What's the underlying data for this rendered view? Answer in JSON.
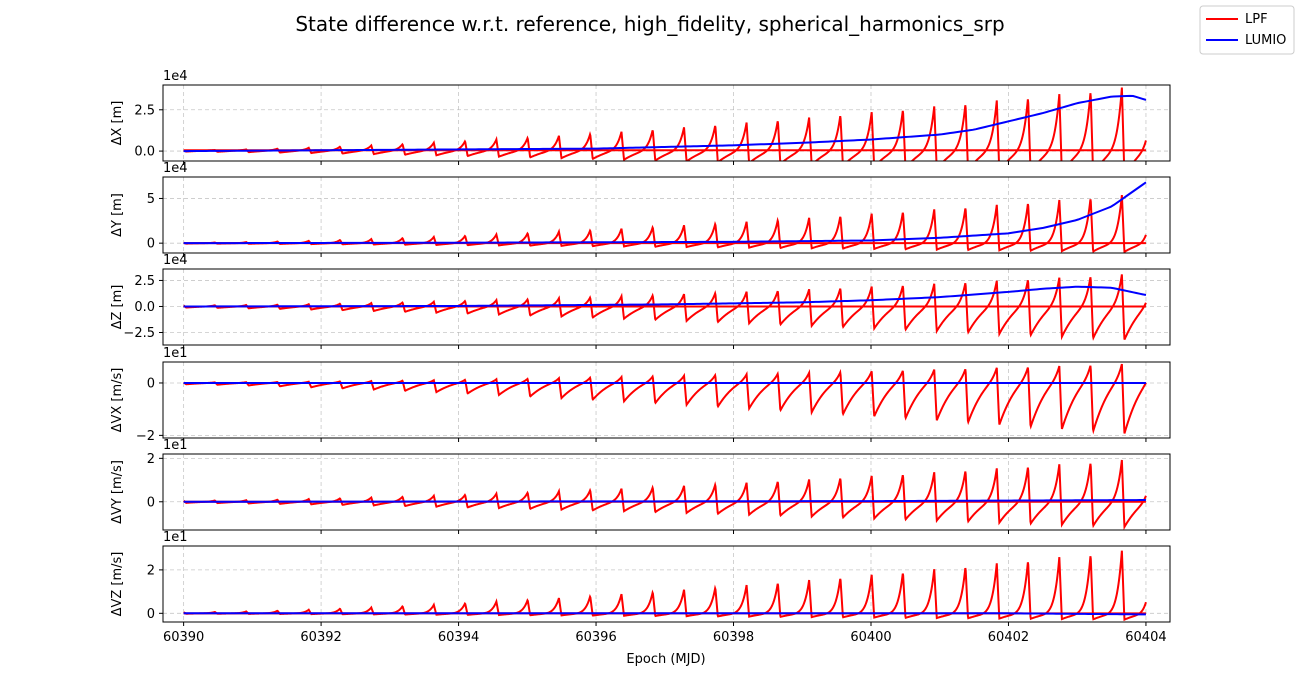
{
  "figure_title": "State difference w.r.t. reference, high_fidelity, spherical_harmonics_srp",
  "legend": {
    "placement": "top-right",
    "entries": [
      {
        "label": "LPF",
        "color": "#ff0000"
      },
      {
        "label": "LUMIO",
        "color": "#0000ff"
      }
    ]
  },
  "chart_data": {
    "type": "line",
    "xlabel": "Epoch (MJD)",
    "xlim": [
      60389.7,
      60404.35
    ],
    "xticks": [
      60390,
      60392,
      60394,
      60396,
      60398,
      60400,
      60402,
      60404
    ],
    "x_range": [
      60390,
      60404
    ],
    "orbit_period_days": 0.455,
    "grid": true,
    "colors": {
      "LPF": "#ff0000",
      "LUMIO": "#0000ff"
    },
    "panels": [
      {
        "ylabel": "ΔX [m]",
        "offset_text": "1e4",
        "ylim": [
          -0.6,
          4.0
        ],
        "yticks": [
          0.0,
          2.5
        ],
        "ytick_labels": [
          "0.0",
          "2.5"
        ],
        "lpf": {
          "peak_start": 0.05,
          "peak_end": 4.0,
          "trough_start": -0.03,
          "trough_end": -1.5,
          "baseline": 0.05
        },
        "lumio": {
          "x": [
            60390,
            60392,
            60394,
            60396,
            60398,
            60399,
            60400,
            60401,
            60401.5,
            60402,
            60402.5,
            60403,
            60403.5,
            60403.8,
            60404
          ],
          "y": [
            0.0,
            0.05,
            0.1,
            0.15,
            0.35,
            0.5,
            0.7,
            1.0,
            1.3,
            1.8,
            2.3,
            2.9,
            3.3,
            3.35,
            3.1
          ]
        }
      },
      {
        "ylabel": "ΔY [m]",
        "offset_text": "1e4",
        "ylim": [
          -1.1,
          7.4
        ],
        "yticks": [
          0,
          5
        ],
        "ytick_labels": [
          "0",
          "5"
        ],
        "lpf": {
          "peak_start": 0.05,
          "peak_end": 5.6,
          "trough_start": -0.05,
          "trough_end": -1.0,
          "baseline": 0.0
        },
        "lumio": {
          "x": [
            60390,
            60394,
            60398,
            60400,
            60401,
            60402,
            60402.5,
            60403,
            60403.5,
            60404
          ],
          "y": [
            0.0,
            0.05,
            0.15,
            0.3,
            0.6,
            1.1,
            1.7,
            2.6,
            4.1,
            6.8
          ]
        }
      },
      {
        "ylabel": "ΔZ [m]",
        "offset_text": "1e4",
        "ylim": [
          -3.7,
          3.6
        ],
        "yticks": [
          -2.5,
          0.0,
          2.5
        ],
        "ytick_labels": [
          "−2.5",
          "0.0",
          "2.5"
        ],
        "lpf": {
          "peak_start": 0.1,
          "peak_end": 3.2,
          "trough_start": -0.1,
          "trough_end": -3.3,
          "baseline": 0.0
        },
        "lumio": {
          "x": [
            60390,
            60394,
            60397,
            60399,
            60400,
            60401,
            60402,
            60402.5,
            60403,
            60403.5,
            60404
          ],
          "y": [
            0.0,
            0.05,
            0.2,
            0.4,
            0.6,
            0.9,
            1.4,
            1.7,
            1.9,
            1.8,
            1.1
          ]
        }
      },
      {
        "ylabel": "ΔVX [m/s]",
        "offset_text": "1e1",
        "ylim": [
          -2.1,
          0.8
        ],
        "yticks": [
          -2,
          0
        ],
        "ytick_labels": [
          "−2",
          "0"
        ],
        "lpf": {
          "peak_start": 0.02,
          "peak_end": 0.75,
          "trough_start": -0.05,
          "trough_end": -2.0,
          "baseline": 0.0
        },
        "lumio": {
          "x": [
            60390,
            60404
          ],
          "y": [
            0.0,
            0.0
          ]
        }
      },
      {
        "ylabel": "ΔVY [m/s]",
        "offset_text": "1e1",
        "ylim": [
          -1.3,
          2.2
        ],
        "yticks": [
          0,
          2
        ],
        "ytick_labels": [
          "0",
          "2"
        ],
        "lpf": {
          "peak_start": 0.05,
          "peak_end": 2.0,
          "trough_start": -0.05,
          "trough_end": -1.2,
          "baseline": 0.0
        },
        "lumio": {
          "x": [
            60390,
            60400,
            60404
          ],
          "y": [
            0.0,
            0.03,
            0.08
          ]
        }
      },
      {
        "ylabel": "ΔVZ [m/s]",
        "offset_text": "1e1",
        "ylim": [
          -0.4,
          3.1
        ],
        "yticks": [
          0,
          2
        ],
        "ytick_labels": [
          "0",
          "2"
        ],
        "lpf": {
          "peak_start": 0.05,
          "peak_end": 3.0,
          "trough_start": -0.02,
          "trough_end": -0.3,
          "baseline": 0.0
        },
        "lumio": {
          "x": [
            60390,
            60402,
            60404
          ],
          "y": [
            0.0,
            0.0,
            -0.05
          ]
        }
      }
    ]
  }
}
